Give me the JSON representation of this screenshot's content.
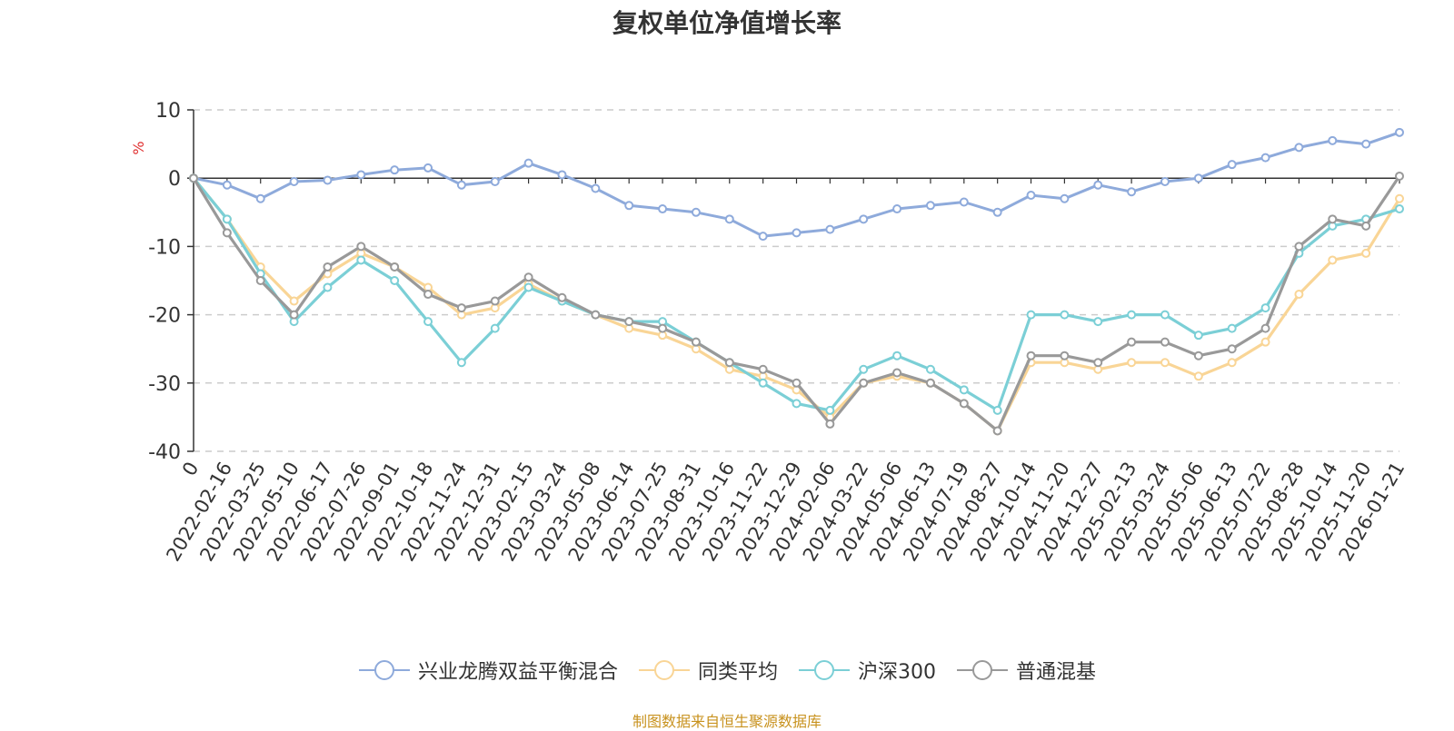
{
  "chart_data": {
    "type": "line",
    "title": "复权单位净值增长率",
    "ylabel": "%",
    "ylim": [
      -40,
      10
    ],
    "yticks": [
      10,
      0,
      -10,
      -20,
      -30,
      -40
    ],
    "grid": true,
    "legend_position": "bottom-center",
    "x_labels": [
      "0",
      "2022-02-16",
      "2022-03-25",
      "2022-05-10",
      "2022-06-17",
      "2022-07-26",
      "2022-09-01",
      "2022-10-18",
      "2022-11-24",
      "2022-12-31",
      "2023-02-15",
      "2023-03-24",
      "2023-05-08",
      "2023-06-14",
      "2023-07-25",
      "2023-08-31",
      "2023-10-16",
      "2023-11-22",
      "2023-12-29",
      "2024-02-06",
      "2024-03-22",
      "2024-05-06",
      "2024-06-13",
      "2024-07-19",
      "2024-08-27",
      "2024-10-14",
      "2024-11-20",
      "2024-12-27",
      "2025-02-13",
      "2025-03-24",
      "2025-05-06",
      "2025-06-13",
      "2025-07-22",
      "2025-08-28",
      "2025-10-14",
      "2025-11-20",
      "2026-01-21"
    ],
    "series": [
      {
        "name": "兴业龙腾双益平衡混合",
        "color": "#8eaadb",
        "values": [
          0,
          -1,
          -3,
          -0.5,
          -0.3,
          0.5,
          1.2,
          1.5,
          -1,
          -0.5,
          2.2,
          0.5,
          -1.5,
          -4,
          -4.5,
          -5,
          -6,
          -8.5,
          -8,
          -7.5,
          -6,
          -4.5,
          -4,
          -3.5,
          -5,
          -2.5,
          -3,
          -1,
          -2,
          -0.5,
          0,
          2,
          3,
          4.5,
          5.5,
          5,
          6.7
        ]
      },
      {
        "name": "同类平均",
        "color": "#f9d596",
        "values": [
          0,
          -6,
          -13,
          -18,
          -14,
          -11,
          -13,
          -16,
          -20,
          -19,
          -15.5,
          -18,
          -20,
          -22,
          -23,
          -25,
          -28,
          -29,
          -31,
          -35,
          -30,
          -29,
          -30,
          -33,
          -37,
          -27,
          -27,
          -28,
          -27,
          -27,
          -29,
          -27,
          -24,
          -17,
          -12,
          -11,
          -3
        ]
      },
      {
        "name": "沪深300",
        "color": "#7bcfd6",
        "values": [
          0,
          -6,
          -14,
          -21,
          -16,
          -12,
          -15,
          -21,
          -27,
          -22,
          -16,
          -18,
          -20,
          -21,
          -21,
          -24,
          -27,
          -30,
          -33,
          -34,
          -28,
          -26,
          -28,
          -31,
          -34,
          -20,
          -20,
          -21,
          -20,
          -20,
          -23,
          -22,
          -19,
          -11,
          -7,
          -6,
          -4.5
        ]
      },
      {
        "name": "普通混基",
        "color": "#999999",
        "values": [
          0,
          -8,
          -15,
          -20,
          -13,
          -10,
          -13,
          -17,
          -19,
          -18,
          -14.5,
          -17.5,
          -20,
          -21,
          -22,
          -24,
          -27,
          -28,
          -30,
          -36,
          -30,
          -28.5,
          -30,
          -33,
          -37,
          -26,
          -26,
          -27,
          -24,
          -24,
          -26,
          -25,
          -22,
          -10,
          -6,
          -7,
          0.3
        ]
      }
    ]
  },
  "source_note": "制图数据来自恒生聚源数据库"
}
